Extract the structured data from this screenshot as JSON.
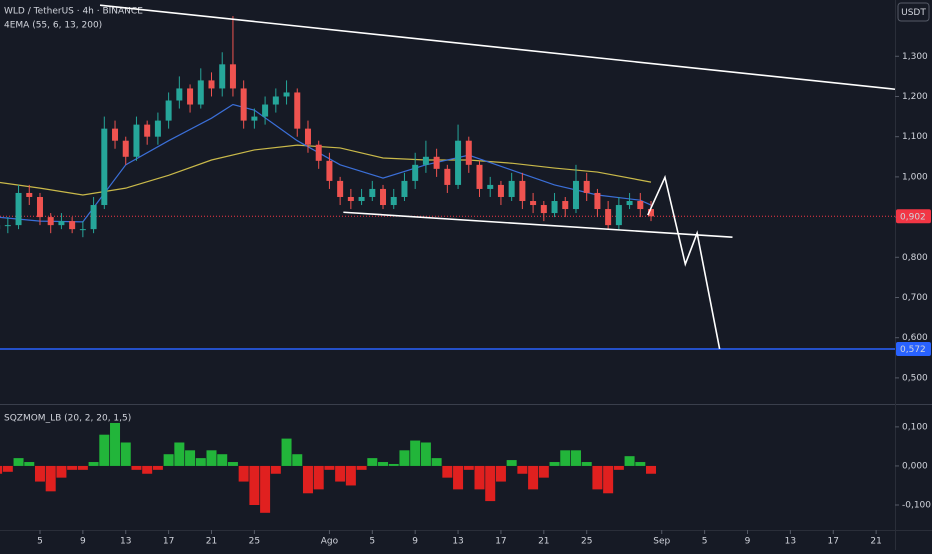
{
  "chart_data": [
    {
      "type": "candlestick",
      "title": "WLD / TetherUS · 4h · BINANCE",
      "subtitle": "4EMA (55, 6, 13, 200)",
      "y_unit": "USDT",
      "up_color": "#26a69a",
      "down_color": "#ef5350",
      "xlim": [
        1.27,
        84.76
      ],
      "ylim": [
        0.445,
        1.44
      ],
      "yticks": [
        {
          "value": 0.5,
          "label": "0,500"
        },
        {
          "value": 0.6,
          "label": "0,600"
        },
        {
          "value": 0.7,
          "label": "0,700"
        },
        {
          "value": 0.8,
          "label": "0,800"
        },
        {
          "value": 0.9,
          "label": "0,900"
        },
        {
          "value": 1.0,
          "label": "1,000"
        },
        {
          "value": 1.1,
          "label": "1,100"
        },
        {
          "value": 1.2,
          "label": "1,200"
        },
        {
          "value": 1.3,
          "label": "1,300"
        }
      ],
      "x": [
        1,
        2,
        3,
        4,
        5,
        6,
        7,
        8,
        9,
        10,
        11,
        12,
        13,
        14,
        15,
        16,
        17,
        18,
        19,
        20,
        21,
        22,
        23,
        24,
        25,
        26,
        27,
        28,
        29,
        30,
        31,
        32,
        33,
        34,
        35,
        36,
        37,
        38,
        39,
        40,
        41,
        42,
        43,
        44,
        45,
        46,
        47,
        48,
        49,
        50,
        51,
        52,
        53,
        54,
        55,
        56,
        57,
        58,
        59,
        60,
        61,
        62
      ],
      "open": [
        0.87,
        0.88,
        0.88,
        0.96,
        0.95,
        0.9,
        0.88,
        0.89,
        0.87,
        0.87,
        0.93,
        1.12,
        1.09,
        1.05,
        1.13,
        1.1,
        1.14,
        1.19,
        1.22,
        1.18,
        1.24,
        1.22,
        1.28,
        1.22,
        1.14,
        1.15,
        1.18,
        1.2,
        1.21,
        1.12,
        1.08,
        1.04,
        0.99,
        0.95,
        0.94,
        0.95,
        0.97,
        0.93,
        0.95,
        0.99,
        1.03,
        1.05,
        1.02,
        0.98,
        1.09,
        1.03,
        0.97,
        0.98,
        0.95,
        0.99,
        0.94,
        0.93,
        0.91,
        0.94,
        0.92,
        0.99,
        0.96,
        0.92,
        0.88,
        0.93,
        0.94,
        0.92
      ],
      "high": [
        0.9,
        0.9,
        0.98,
        0.98,
        0.96,
        0.91,
        0.91,
        0.9,
        0.89,
        0.95,
        1.15,
        1.14,
        1.1,
        1.15,
        1.14,
        1.16,
        1.21,
        1.25,
        1.23,
        1.27,
        1.26,
        1.31,
        1.4,
        1.24,
        1.17,
        1.2,
        1.22,
        1.24,
        1.22,
        1.14,
        1.09,
        1.06,
        1.0,
        0.97,
        0.97,
        0.99,
        0.98,
        0.97,
        1.01,
        1.06,
        1.09,
        1.07,
        1.03,
        1.13,
        1.1,
        1.04,
        1.0,
        0.99,
        1.01,
        1.01,
        0.96,
        0.94,
        0.96,
        0.95,
        1.03,
        1.01,
        0.97,
        0.94,
        0.95,
        0.96,
        0.96,
        0.94
      ],
      "low": [
        0.85,
        0.86,
        0.87,
        0.93,
        0.88,
        0.86,
        0.87,
        0.86,
        0.85,
        0.86,
        0.92,
        1.07,
        1.03,
        1.04,
        1.08,
        1.08,
        1.12,
        1.17,
        1.16,
        1.17,
        1.2,
        1.2,
        1.2,
        1.12,
        1.12,
        1.13,
        1.16,
        1.18,
        1.1,
        1.06,
        1.02,
        0.97,
        0.93,
        0.92,
        0.93,
        0.94,
        0.92,
        0.92,
        0.94,
        0.97,
        1.01,
        1.0,
        0.96,
        0.97,
        1.01,
        0.95,
        0.95,
        0.93,
        0.94,
        0.92,
        0.91,
        0.89,
        0.9,
        0.9,
        0.91,
        0.94,
        0.9,
        0.87,
        0.87,
        0.92,
        0.9,
        0.89
      ],
      "close": [
        0.88,
        0.88,
        0.96,
        0.95,
        0.9,
        0.88,
        0.89,
        0.87,
        0.87,
        0.93,
        1.12,
        1.09,
        1.05,
        1.13,
        1.1,
        1.14,
        1.19,
        1.22,
        1.18,
        1.24,
        1.22,
        1.28,
        1.22,
        1.14,
        1.15,
        1.18,
        1.2,
        1.21,
        1.12,
        1.08,
        1.04,
        0.99,
        0.95,
        0.94,
        0.95,
        0.97,
        0.93,
        0.95,
        0.99,
        1.03,
        1.05,
        1.02,
        0.98,
        1.09,
        1.03,
        0.97,
        0.98,
        0.95,
        0.99,
        0.94,
        0.93,
        0.91,
        0.94,
        0.92,
        0.99,
        0.96,
        0.92,
        0.88,
        0.93,
        0.94,
        0.92,
        0.902
      ],
      "lines": [
        {
          "color": "#c9b94a",
          "x": [
            1,
            5,
            9,
            13,
            17,
            21,
            25,
            29,
            33,
            37,
            41,
            45,
            49,
            53,
            57,
            61,
            62
          ],
          "values": [
            0.987,
            0.972,
            0.955,
            0.972,
            1.004,
            1.042,
            1.067,
            1.079,
            1.072,
            1.047,
            1.042,
            1.042,
            1.034,
            1.022,
            1.012,
            0.992,
            0.987
          ]
        },
        {
          "color": "#3b6fd8",
          "x": [
            1,
            5,
            9,
            13,
            17,
            21,
            23,
            25,
            29,
            33,
            37,
            41,
            45,
            49,
            53,
            57,
            61,
            62
          ],
          "values": [
            0.9,
            0.89,
            0.888,
            1.03,
            1.09,
            1.146,
            1.18,
            1.166,
            1.09,
            1.03,
            0.997,
            1.03,
            1.054,
            1.017,
            0.98,
            0.955,
            0.942,
            0.93
          ]
        }
      ],
      "drawings": [
        {
          "color": "#ffffff",
          "x": [
            10.6,
            84.76
          ],
          "values": [
            1.427,
            1.218
          ]
        },
        {
          "color": "#ffffff",
          "x": [
            33.3,
            69.6
          ],
          "values": [
            0.912,
            0.85
          ]
        },
        {
          "color": "#ffffff",
          "x": [
            61.7,
            63.3,
            65.2,
            66.3,
            68.4
          ],
          "values": [
            0.905,
            0.999,
            0.783,
            0.86,
            0.572
          ]
        }
      ],
      "price_lines": [
        {
          "value": 0.902,
          "label": "0,902",
          "color": "#f23645",
          "dotted": true
        },
        {
          "value": 0.572,
          "label": "0,572",
          "color": "#2962ff",
          "dotted": false
        }
      ]
    },
    {
      "type": "bar",
      "title": "SQZMOM_LB (20, 2, 20, 1,5)",
      "pos_color": "#22b53a",
      "neg_color": "#e0201f",
      "xlim": [
        1.27,
        84.76
      ],
      "ylim": [
        -0.164,
        0.156
      ],
      "yticks": [
        {
          "value": -0.1,
          "label": "-0,100"
        },
        {
          "value": 0,
          "label": "0,000"
        },
        {
          "value": 0.1,
          "label": "0,100"
        }
      ],
      "xticks": [
        {
          "value": 5,
          "label": "5"
        },
        {
          "value": 9,
          "label": "9"
        },
        {
          "value": 13,
          "label": "13"
        },
        {
          "value": 17,
          "label": "17"
        },
        {
          "value": 21,
          "label": "21"
        },
        {
          "value": 25,
          "label": "25"
        },
        {
          "value": 32,
          "label": "Ago"
        },
        {
          "value": 36,
          "label": "5"
        },
        {
          "value": 40,
          "label": "9"
        },
        {
          "value": 44,
          "label": "13"
        },
        {
          "value": 48,
          "label": "17"
        },
        {
          "value": 52,
          "label": "21"
        },
        {
          "value": 56,
          "label": "25"
        },
        {
          "value": 63,
          "label": "Sep"
        },
        {
          "value": 67,
          "label": "5"
        },
        {
          "value": 71,
          "label": "9"
        },
        {
          "value": 75,
          "label": "13"
        },
        {
          "value": 79,
          "label": "17"
        },
        {
          "value": 83,
          "label": "21"
        }
      ],
      "x": [
        1,
        2,
        3,
        4,
        5,
        6,
        7,
        8,
        9,
        10,
        11,
        12,
        13,
        14,
        15,
        16,
        17,
        18,
        19,
        20,
        21,
        22,
        23,
        24,
        25,
        26,
        27,
        28,
        29,
        30,
        31,
        32,
        33,
        34,
        35,
        36,
        37,
        38,
        39,
        40,
        41,
        42,
        43,
        44,
        45,
        46,
        47,
        48,
        49,
        50,
        51,
        52,
        53,
        54,
        55,
        56,
        57,
        58,
        59,
        60,
        61,
        62
      ],
      "values": [
        -0.02,
        -0.015,
        0.02,
        0.01,
        -0.04,
        -0.065,
        -0.03,
        -0.01,
        -0.01,
        0.01,
        0.08,
        0.11,
        0.06,
        -0.01,
        -0.02,
        -0.01,
        0.03,
        0.06,
        0.04,
        0.02,
        0.04,
        0.03,
        0.01,
        -0.04,
        -0.1,
        -0.12,
        -0.02,
        0.07,
        0.03,
        -0.07,
        -0.06,
        -0.01,
        -0.04,
        -0.05,
        -0.01,
        0.02,
        0.01,
        0.005,
        0.04,
        0.065,
        0.06,
        0.02,
        -0.03,
        -0.06,
        -0.01,
        -0.06,
        -0.09,
        -0.04,
        0.015,
        -0.02,
        -0.06,
        -0.03,
        0.01,
        0.04,
        0.04,
        0.01,
        -0.06,
        -0.07,
        -0.01,
        0.025,
        0.01,
        -0.02
      ]
    }
  ]
}
